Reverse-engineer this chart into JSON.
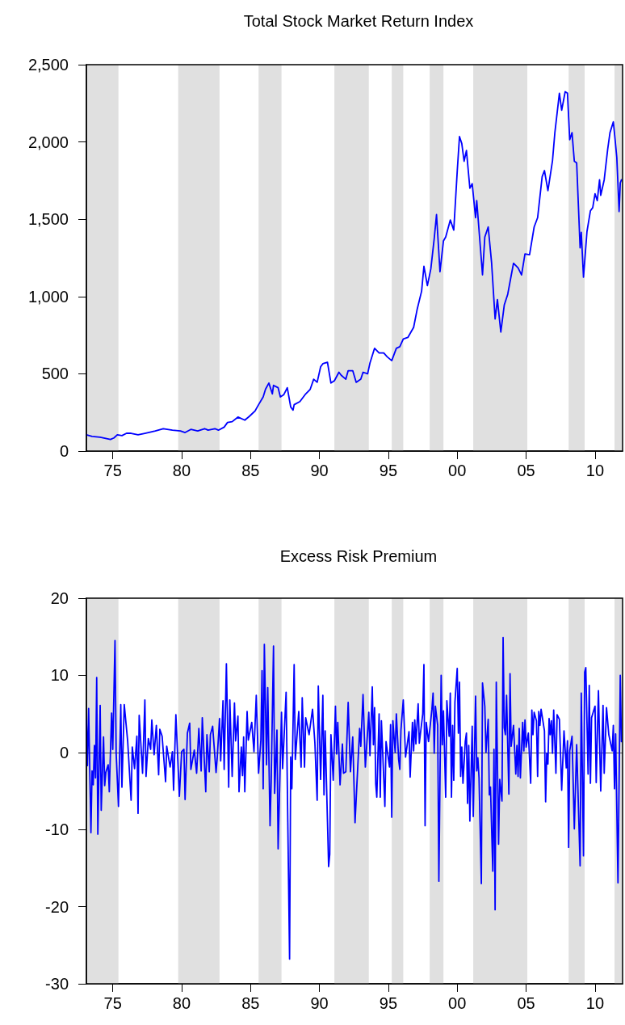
{
  "chart_data": [
    {
      "type": "line",
      "title": "Total Stock Market Return Index",
      "x": [
        "1973-02",
        "1973-07",
        "1974-02",
        "1974-11",
        "1975-02",
        "1975-05",
        "1975-09",
        "1976-01",
        "1976-05",
        "1976-11",
        "1977-05",
        "1978-02",
        "1978-09",
        "1979-05",
        "1979-12",
        "1980-04",
        "1980-09",
        "1981-03",
        "1981-09",
        "1981-12",
        "1982-06",
        "1982-09",
        "1983-02",
        "1983-05",
        "1983-09",
        "1984-02",
        "1984-08",
        "1984-12",
        "1985-05",
        "1985-08",
        "1985-12",
        "1986-02",
        "1986-05",
        "1986-08",
        "1986-09",
        "1987-01",
        "1987-03",
        "1987-06",
        "1987-09",
        "1987-12",
        "1988-02",
        "1988-03",
        "1988-08",
        "1989-01",
        "1989-05",
        "1989-08",
        "1989-11",
        "1990-02",
        "1990-04",
        "1990-08",
        "1990-11",
        "1991-02",
        "1991-06",
        "1991-08",
        "1991-12",
        "1992-02",
        "1992-06",
        "1992-09",
        "1993-01",
        "1993-03",
        "1993-07",
        "1993-09",
        "1994-01",
        "1994-05",
        "1994-09",
        "1994-12",
        "1995-04",
        "1995-08",
        "1995-11",
        "1996-02",
        "1996-06",
        "1996-11",
        "1997-02",
        "1997-06",
        "1997-08",
        "1997-11",
        "1998-02",
        "1998-05",
        "1998-07",
        "1998-10",
        "1999-01",
        "1999-03",
        "1999-07",
        "1999-10",
        "2000-01",
        "2000-03",
        "2000-05",
        "2000-07",
        "2000-09",
        "2000-12",
        "2001-02",
        "2001-05",
        "2001-06",
        "2001-11",
        "2002-01",
        "2002-04",
        "2002-07",
        "2002-10",
        "2002-12",
        "2003-03",
        "2003-06",
        "2003-09",
        "2003-12",
        "2004-02",
        "2004-06",
        "2004-09",
        "2004-12",
        "2005-04",
        "2005-08",
        "2005-11",
        "2006-03",
        "2006-05",
        "2006-08",
        "2006-12",
        "2007-02",
        "2007-06",
        "2007-08",
        "2007-11",
        "2008-01",
        "2008-03",
        "2008-05",
        "2008-07",
        "2008-09",
        "2008-12",
        "2009-01",
        "2009-03",
        "2009-06",
        "2009-09",
        "2009-11",
        "2010-01",
        "2010-03",
        "2010-05",
        "2010-06",
        "2010-09",
        "2010-12",
        "2011-02",
        "2011-05",
        "2011-06",
        "2011-08",
        "2011-10",
        "2011-11",
        "2011-12"
      ],
      "series": [
        {
          "color": "#0000ff",
          "values": [
            105,
            95,
            90,
            75,
            85,
            105,
            100,
            115,
            115,
            105,
            115,
            130,
            145,
            135,
            130,
            120,
            140,
            130,
            145,
            135,
            145,
            135,
            155,
            185,
            190,
            220,
            200,
            225,
            260,
            300,
            350,
            400,
            440,
            370,
            425,
            410,
            350,
            365,
            410,
            285,
            265,
            300,
            320,
            370,
            400,
            465,
            445,
            545,
            565,
            575,
            440,
            455,
            510,
            490,
            465,
            520,
            520,
            445,
            465,
            510,
            500,
            570,
            665,
            635,
            635,
            610,
            585,
            665,
            675,
            725,
            735,
            800,
            915,
            1035,
            1195,
            1070,
            1180,
            1375,
            1530,
            1160,
            1360,
            1385,
            1495,
            1430,
            1810,
            2035,
            1990,
            1875,
            1945,
            1700,
            1730,
            1510,
            1620,
            1140,
            1385,
            1450,
            1215,
            855,
            980,
            770,
            945,
            1015,
            1135,
            1215,
            1185,
            1140,
            1275,
            1270,
            1450,
            1510,
            1775,
            1815,
            1685,
            1880,
            2060,
            2315,
            2205,
            2325,
            2315,
            2015,
            2060,
            1875,
            1865,
            1315,
            1415,
            1125,
            1420,
            1555,
            1575,
            1665,
            1620,
            1755,
            1655,
            1755,
            1950,
            2060,
            2130,
            2055,
            1900,
            1550,
            1735,
            1755
          ]
        }
      ],
      "xlim": [
        "1973-02",
        "2012-01"
      ],
      "xticks": [
        {
          "value": "1975",
          "label": "75"
        },
        {
          "value": "1980",
          "label": "80"
        },
        {
          "value": "1985",
          "label": "85"
        },
        {
          "value": "1990",
          "label": "90"
        },
        {
          "value": "1995",
          "label": "95"
        },
        {
          "value": "2000",
          "label": "00"
        },
        {
          "value": "2005",
          "label": "05"
        },
        {
          "value": "2010",
          "label": "10"
        }
      ],
      "ylim": [
        0,
        2500
      ],
      "yticks": [
        0,
        500,
        {
          "value": 1000,
          "label": "1,000"
        },
        {
          "value": 1500,
          "label": "1,500"
        },
        {
          "value": 2000,
          "label": "2,000"
        },
        {
          "value": 2500,
          "label": "2,500"
        }
      ],
      "bands": [
        {
          "axis": "x",
          "from": "1973-03",
          "to": "1975-06",
          "color": "#e0e0e0"
        },
        {
          "axis": "x",
          "from": "1979-10",
          "to": "1982-10",
          "color": "#e0e0e0"
        },
        {
          "axis": "x",
          "from": "1985-08",
          "to": "1987-04",
          "color": "#e0e0e0"
        },
        {
          "axis": "x",
          "from": "1991-02",
          "to": "1993-08",
          "color": "#e0e0e0"
        },
        {
          "axis": "x",
          "from": "1995-04",
          "to": "1996-02",
          "color": "#e0e0e0"
        },
        {
          "axis": "x",
          "from": "1998-01",
          "to": "1999-01",
          "color": "#e0e0e0"
        },
        {
          "axis": "x",
          "from": "2001-03",
          "to": "2005-02",
          "color": "#e0e0e0"
        },
        {
          "axis": "x",
          "from": "2008-02",
          "to": "2009-04",
          "color": "#e0e0e0"
        },
        {
          "axis": "x",
          "from": "2011-06",
          "to": "2012-01",
          "color": "#e0e0e0"
        }
      ]
    },
    {
      "type": "line",
      "title": "Excess Risk Premium",
      "x": [
        "1973-02",
        "1973-03",
        "1973-04",
        "1973-06",
        "1973-07",
        "1973-08",
        "1973-09",
        "1973-10",
        "1973-11",
        "1973-12",
        "1974-02",
        "1974-03",
        "1974-05",
        "1974-06",
        "1974-07",
        "1974-09",
        "1974-10",
        "1974-12",
        "1975-01",
        "1975-03",
        "1975-04",
        "1975-06",
        "1975-08",
        "1975-09",
        "1975-11",
        "1976-02",
        "1976-05",
        "1976-06",
        "1976-08",
        "1976-10",
        "1976-11",
        "1976-12",
        "1977-03",
        "1977-05",
        "1977-06",
        "1977-08",
        "1977-10",
        "1977-11",
        "1978-01",
        "1978-03",
        "1978-05",
        "1978-06",
        "1978-08",
        "1978-11",
        "1978-12",
        "1979-03",
        "1979-05",
        "1979-06",
        "1979-08",
        "1979-11",
        "1980-01",
        "1980-03",
        "1980-04",
        "1980-06",
        "1980-08",
        "1980-09",
        "1980-12",
        "1981-02",
        "1981-04",
        "1981-06",
        "1981-07",
        "1981-10",
        "1981-11",
        "1982-01",
        "1982-02",
        "1982-04",
        "1982-07",
        "1982-08",
        "1982-10",
        "1982-11",
        "1983-01",
        "1983-02",
        "1983-04",
        "1983-06",
        "1983-07",
        "1983-09",
        "1983-11",
        "1983-12",
        "1984-02",
        "1984-03",
        "1984-05",
        "1984-06",
        "1984-07",
        "1984-08",
        "1984-10",
        "1984-11",
        "1985-02",
        "1985-04",
        "1985-06",
        "1985-08",
        "1985-10",
        "1985-11",
        "1985-12",
        "1986-01",
        "1986-03",
        "1986-04",
        "1986-06",
        "1986-07",
        "1986-09",
        "1986-10",
        "1986-12",
        "1987-01",
        "1987-04",
        "1987-05",
        "1987-08",
        "1987-11",
        "1987-12",
        "1988-01",
        "1988-03",
        "1988-04",
        "1988-07",
        "1988-09",
        "1988-10",
        "1988-12",
        "1989-01",
        "1989-04",
        "1989-07",
        "1989-09",
        "1989-11",
        "1989-12",
        "1990-02",
        "1990-04",
        "1990-05",
        "1990-06",
        "1990-09",
        "1990-10",
        "1990-11",
        "1991-01",
        "1991-03",
        "1991-04",
        "1991-05",
        "1991-07",
        "1991-09",
        "1991-10",
        "1991-12",
        "1992-02",
        "1992-04",
        "1992-06",
        "1992-08",
        "1992-12",
        "1993-01",
        "1993-03",
        "1993-05",
        "1993-08",
        "1993-09",
        "1993-11",
        "1993-12",
        "1994-01",
        "1994-02",
        "1994-03",
        "1994-05",
        "1994-06",
        "1994-07",
        "1994-10",
        "1994-11",
        "1995-02",
        "1995-03",
        "1995-04",
        "1995-05",
        "1995-07",
        "1995-08",
        "1995-10",
        "1995-11",
        "1995-12",
        "1996-02",
        "1996-04",
        "1996-07",
        "1996-08",
        "1996-10",
        "1996-11",
        "1996-12",
        "1997-01",
        "1997-03",
        "1997-04",
        "1997-07",
        "1997-08",
        "1997-09",
        "1997-10",
        "1997-12",
        "1998-03",
        "1998-04",
        "1998-05",
        "1998-06",
        "1998-08",
        "1998-09",
        "1998-11",
        "1998-12",
        "1999-01",
        "1999-03",
        "1999-04",
        "1999-06",
        "1999-07",
        "1999-08",
        "1999-09",
        "1999-10",
        "1999-11",
        "2000-01",
        "2000-02",
        "2000-03",
        "2000-04",
        "2000-05",
        "2000-06",
        "2000-08",
        "2000-09",
        "2000-10",
        "2000-11",
        "2000-12",
        "2001-02",
        "2001-03",
        "2001-05",
        "2001-06",
        "2001-07",
        "2001-08",
        "2001-10",
        "2001-11",
        "2002-01",
        "2002-02",
        "2002-04",
        "2002-05",
        "2002-06",
        "2002-08",
        "2002-09",
        "2002-10",
        "2002-11",
        "2003-01",
        "2003-02",
        "2003-04",
        "2003-05",
        "2003-06",
        "2003-07",
        "2003-08",
        "2003-10",
        "2003-11",
        "2003-12",
        "2004-02",
        "2004-04",
        "2004-05",
        "2004-06",
        "2004-07",
        "2004-08",
        "2004-10",
        "2004-11",
        "2004-12",
        "2005-01",
        "2005-03",
        "2005-05",
        "2005-06",
        "2005-07",
        "2005-08",
        "2005-10",
        "2005-11",
        "2005-12",
        "2006-01",
        "2006-02",
        "2006-05",
        "2006-06",
        "2006-07",
        "2006-08",
        "2006-09",
        "2006-10",
        "2006-11",
        "2006-12",
        "2007-01",
        "2007-03",
        "2007-04",
        "2007-06",
        "2007-08",
        "2007-10",
        "2007-12",
        "2008-01",
        "2008-02",
        "2008-03",
        "2008-05",
        "2008-07",
        "2008-09",
        "2008-12",
        "2009-01",
        "2009-03",
        "2009-04",
        "2009-05",
        "2009-07",
        "2009-08",
        "2009-09",
        "2009-10",
        "2010-01",
        "2010-02",
        "2010-04",
        "2010-06",
        "2010-08",
        "2010-09",
        "2010-11",
        "2011-01",
        "2011-04",
        "2011-05",
        "2011-06",
        "2011-07",
        "2011-09",
        "2011-11",
        "2011-12"
      ],
      "series": [
        {
          "color": "#0000ff",
          "values": [
            4.2,
            -1.7,
            5.7,
            -10.4,
            -2.4,
            -4.2,
            0.9,
            -3.3,
            9.7,
            -10.6,
            6.1,
            -7.5,
            2.0,
            -4.3,
            -2.6,
            -1.6,
            -5.1,
            5.1,
            0.4,
            14.5,
            -0.1,
            -7.0,
            6.2,
            -4.5,
            6.2,
            1.4,
            -6.2,
            0.7,
            -2.1,
            2.1,
            -7.9,
            4.8,
            -2.7,
            6.8,
            -3.1,
            1.8,
            0.4,
            4.2,
            -0.3,
            3.5,
            -2.9,
            3.0,
            2.1,
            -3.8,
            0.8,
            -1.9,
            0.1,
            -4.9,
            4.9,
            -5.7,
            0.1,
            0.4,
            -6.1,
            2.5,
            3.8,
            -2.2,
            0.3,
            -2.7,
            3.1,
            -2.4,
            4.5,
            -5.1,
            2.3,
            -2.5,
            2.3,
            3.4,
            -2.6,
            -0.7,
            4.4,
            -1.1,
            6.7,
            -2.2,
            11.5,
            -4.5,
            6.8,
            -3.1,
            6.4,
            1.5,
            4.7,
            -5.1,
            0.7,
            -3.0,
            2.0,
            -5.1,
            5.3,
            1.6,
            3.9,
            0.1,
            7.4,
            -2.7,
            1.6,
            10.6,
            -4.7,
            14.0,
            -1.6,
            8.4,
            -9.5,
            -3.8,
            13.8,
            -5.3,
            2.9,
            -12.5,
            5.2,
            -2.1,
            7.8,
            -26.8,
            -0.6,
            -4.7,
            11.4,
            -0.9,
            5.3,
            -1.9,
            7.1,
            -1.9,
            4.5,
            2.3,
            5.6,
            1.3,
            -6.2,
            8.6,
            -3.5,
            7.4,
            -5.5,
            2.8,
            -14.8,
            -13.2,
            2.3,
            -3.6,
            6.0,
            -0.2,
            3.9,
            -4.2,
            1.1,
            -2.7,
            -2.5,
            6.5,
            -2.5,
            2.0,
            -9.1,
            3.1,
            0.8,
            7.5,
            -1.9,
            5.2,
            -0.4,
            8.5,
            1.0,
            5.8,
            -4.1,
            -5.8,
            5.0,
            -5.8,
            4.1,
            -7.0,
            1.4,
            -1.9,
            3.6,
            -8.4,
            4.1,
            0.0,
            5.0,
            -0.9,
            -2.2,
            2.9,
            6.8,
            -0.6,
            2.7,
            -3.2,
            3.9,
            0.2,
            4.2,
            1.1,
            6.3,
            1.2,
            5.0,
            11.4,
            -9.5,
            3.9,
            1.4,
            5.6,
            7.7,
            -0.1,
            6.0,
            3.5,
            -16.7,
            10.0,
            1.0,
            5.4,
            -5.8,
            6.7,
            2.1,
            7.7,
            -5.8,
            3.5,
            -3.6,
            6.5,
            10.9,
            2.5,
            9.1,
            -3.1,
            0.7,
            -4.0,
            1.4,
            2.5,
            -6.6,
            0.9,
            -8.9,
            3.4,
            -8.3,
            7.3,
            -2.4,
            -0.7,
            -3.3,
            -17.0,
            9.0,
            6.0,
            0.0,
            4.3,
            -5.5,
            -4.5,
            -15.4,
            0.4,
            -20.4,
            9.1,
            -11.9,
            -3.5,
            -6.3,
            14.9,
            3.2,
            2.3,
            7.4,
            -5.4,
            10.2,
            0.8,
            3.5,
            -2.8,
            0.9,
            -3.1,
            3.1,
            -3.3,
            3.9,
            0.2,
            4.2,
            0.7,
            2.5,
            -4.0,
            5.5,
            2.3,
            5.2,
            4.1,
            -3.1,
            5.3,
            3.5,
            5.6,
            2.8,
            -6.4,
            -0.1,
            -1.5,
            4.4,
            2.3,
            4.1,
            -0.1,
            5.5,
            -2.7,
            4.9,
            4.3,
            -4.9,
            2.8,
            -2.0,
            1.5,
            -12.3,
            0.2,
            2.1,
            -9.9,
            1.0,
            -14.7,
            7.7,
            -13.4,
            10.4,
            11.0,
            -2.8,
            8.7,
            -4.0,
            4.5,
            6.0,
            -3.9,
            8.0,
            -5.0,
            6.1,
            -2.7,
            5.8,
            2.3,
            0.2,
            3.5,
            -4.7,
            2.4,
            -16.9,
            10.0,
            1.4
          ]
        }
      ],
      "xlim": [
        "1973-02",
        "2012-01"
      ],
      "xticks": [
        {
          "value": "1975",
          "label": "75"
        },
        {
          "value": "1980",
          "label": "80"
        },
        {
          "value": "1985",
          "label": "85"
        },
        {
          "value": "1990",
          "label": "90"
        },
        {
          "value": "1995",
          "label": "95"
        },
        {
          "value": "2000",
          "label": "00"
        },
        {
          "value": "2005",
          "label": "05"
        },
        {
          "value": "2010",
          "label": "10"
        }
      ],
      "ylim": [
        -30,
        20
      ],
      "yticks": [
        -30,
        -20,
        -10,
        0,
        10,
        20
      ],
      "ref_lines": [
        {
          "axis": "y",
          "value": 0,
          "color": "#4d4d4d"
        }
      ],
      "bands": [
        {
          "axis": "x",
          "from": "1973-03",
          "to": "1975-06",
          "color": "#e0e0e0"
        },
        {
          "axis": "x",
          "from": "1979-10",
          "to": "1982-10",
          "color": "#e0e0e0"
        },
        {
          "axis": "x",
          "from": "1985-08",
          "to": "1987-04",
          "color": "#e0e0e0"
        },
        {
          "axis": "x",
          "from": "1991-02",
          "to": "1993-08",
          "color": "#e0e0e0"
        },
        {
          "axis": "x",
          "from": "1995-04",
          "to": "1996-02",
          "color": "#e0e0e0"
        },
        {
          "axis": "x",
          "from": "1998-01",
          "to": "1999-01",
          "color": "#e0e0e0"
        },
        {
          "axis": "x",
          "from": "2001-03",
          "to": "2005-02",
          "color": "#e0e0e0"
        },
        {
          "axis": "x",
          "from": "2008-02",
          "to": "2009-04",
          "color": "#e0e0e0"
        },
        {
          "axis": "x",
          "from": "2011-06",
          "to": "2012-01",
          "color": "#e0e0e0"
        }
      ]
    }
  ]
}
